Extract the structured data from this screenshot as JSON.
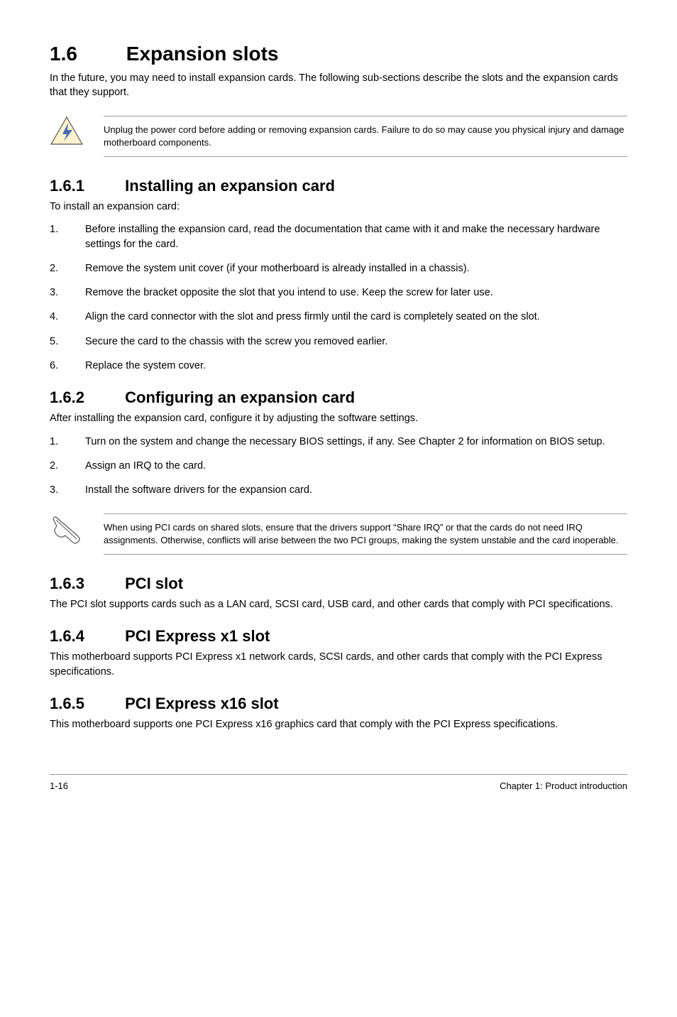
{
  "main_heading": {
    "num": "1.6",
    "title": "Expansion slots"
  },
  "main_intro": "In the future, you may need to install expansion cards. The following sub-sections describe the slots and the expansion cards that they support.",
  "warning_text": "Unplug the power cord before adding or removing expansion cards. Failure to do so may cause you physical injury and damage motherboard components.",
  "s161": {
    "num": "1.6.1",
    "title": "Installing an expansion card",
    "intro": "To install an expansion card:",
    "items": [
      "Before installing the expansion card, read the documentation that came with it and make the necessary hardware settings for the card.",
      "Remove the system unit cover (if your motherboard is already installed in a chassis).",
      "Remove the bracket opposite the slot that you intend to use. Keep the screw for later use.",
      "Align the card connector with the slot and press firmly until the card is completely seated on the slot.",
      "Secure the card to the chassis with the screw you removed earlier.",
      "Replace the system cover."
    ]
  },
  "s162": {
    "num": "1.6.2",
    "title": "Configuring an expansion card",
    "intro": "After installing the expansion card, configure it by adjusting the software settings.",
    "items": [
      "Turn on the system and change the necessary BIOS settings, if any. See Chapter 2 for information on BIOS setup.",
      "Assign an IRQ to the card.",
      "Install the software drivers for the expansion card."
    ]
  },
  "note_text": "When using PCI cards on shared slots, ensure that the drivers support “Share IRQ” or that the cards do not need IRQ assignments. Otherwise, conflicts will arise between the two PCI groups, making the system unstable and the card inoperable.",
  "s163": {
    "num": "1.6.3",
    "title": "PCI slot",
    "body": "The PCI slot supports cards such as a LAN card, SCSI card, USB card, and other cards that comply with PCI specifications."
  },
  "s164": {
    "num": "1.6.4",
    "title": "PCI Express x1 slot",
    "body": "This motherboard supports PCI Express x1 network cards, SCSI cards, and other cards that comply with the PCI Express specifications."
  },
  "s165": {
    "num": "1.6.5",
    "title": "PCI Express x16 slot",
    "body": "This motherboard supports one PCI Express x16 graphics card that comply with the PCI Express specifications."
  },
  "footer": {
    "left": "1-16",
    "right": "Chapter 1: Product introduction"
  },
  "colors": {
    "warning_fill": "#fdf2ce",
    "warning_stroke": "#555555",
    "bolt": "#4a6fb3",
    "note_stroke": "#555555"
  }
}
